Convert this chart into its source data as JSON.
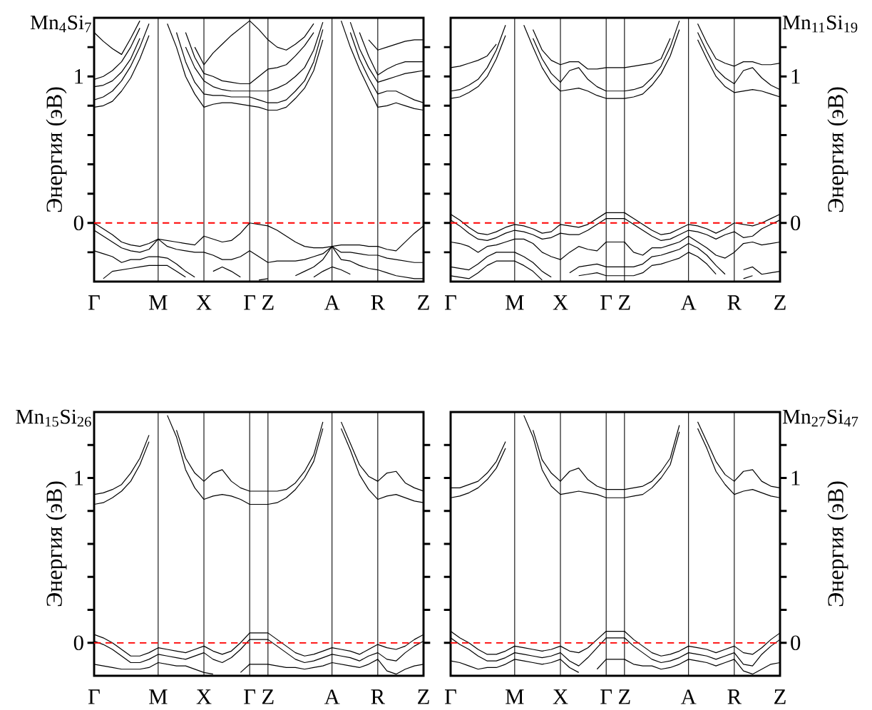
{
  "chart_data": [
    {
      "type": "line",
      "title": "Mn$_{4}$Si$_{7}$",
      "ylabel": "Энергия (эВ)",
      "ylim": [
        -0.4,
        1.4
      ],
      "grid": "x",
      "categories": [
        "Γ",
        null,
        null,
        null,
        null,
        null,
        null,
        "M",
        null,
        null,
        null,
        null,
        "X",
        null,
        null,
        null,
        null,
        "Γ",
        null,
        "Z",
        null,
        null,
        null,
        null,
        null,
        null,
        "A",
        null,
        null,
        null,
        null,
        "R",
        null,
        null,
        null,
        null,
        "Z"
      ],
      "yticks": [
        {
          "value": -0.2,
          "label": null
        },
        0,
        {
          "value": 0.2,
          "label": null
        },
        {
          "value": 0.4,
          "label": null
        },
        {
          "value": 0.6,
          "label": null
        },
        {
          "value": 0.8,
          "label": null
        },
        1,
        {
          "value": 1.2,
          "label": null
        }
      ],
      "ref_lines": [
        {
          "axis": "y",
          "value": 0,
          "color": "#ff0000",
          "line_style": "dashed"
        }
      ],
      "series": [
        {
          "color": "#000000",
          "values": [
            0.79,
            0.8,
            0.83,
            0.9,
            0.99,
            1.12,
            1.28,
            null,
            1.36,
            1.2,
            1.0,
            0.88,
            0.79,
            0.81,
            0.82,
            0.82,
            0.81,
            0.8,
            0.79,
            0.77,
            0.77,
            0.79,
            0.85,
            0.92,
            1.04,
            1.25,
            null,
            1.38,
            1.2,
            1.05,
            0.92,
            0.79,
            0.8,
            0.82,
            0.8,
            0.78,
            0.77
          ]
        },
        {
          "color": "#000000",
          "values": [
            0.84,
            0.86,
            0.9,
            0.97,
            1.07,
            1.2,
            1.36,
            null,
            null,
            1.3,
            1.1,
            0.96,
            0.88,
            0.87,
            0.87,
            0.86,
            0.86,
            0.86,
            0.84,
            0.82,
            0.82,
            0.84,
            0.9,
            0.97,
            1.1,
            1.32,
            null,
            null,
            1.3,
            1.12,
            0.99,
            0.88,
            0.9,
            0.9,
            0.87,
            0.84,
            0.82
          ]
        },
        {
          "color": "#000000",
          "values": [
            0.93,
            0.94,
            0.97,
            1.03,
            1.12,
            1.26,
            null,
            null,
            null,
            null,
            1.2,
            1.06,
            0.97,
            0.93,
            0.91,
            0.9,
            0.9,
            0.9,
            0.9,
            0.9,
            0.92,
            0.95,
            1.0,
            1.06,
            1.18,
            1.37,
            null,
            null,
            1.37,
            1.19,
            1.06,
            0.96,
            0.98,
            1.0,
            1.02,
            1.03,
            1.04
          ]
        },
        {
          "color": "#000000",
          "values": [
            0.98,
            1.0,
            1.04,
            1.1,
            1.2,
            1.33,
            null,
            null,
            null,
            null,
            1.3,
            1.13,
            1.02,
            1.0,
            0.97,
            0.96,
            0.95,
            0.95,
            1.0,
            1.05,
            1.06,
            1.08,
            1.14,
            1.21,
            1.3,
            null,
            null,
            null,
            null,
            1.3,
            1.14,
            1.01,
            1.05,
            1.08,
            1.1,
            1.1,
            1.1
          ]
        },
        {
          "color": "#000000",
          "values": [
            1.3,
            1.24,
            1.19,
            1.15,
            1.26,
            1.38,
            null,
            null,
            null,
            null,
            null,
            1.2,
            1.08,
            1.16,
            1.22,
            1.28,
            1.33,
            1.38,
            1.32,
            1.25,
            1.2,
            1.18,
            1.22,
            1.27,
            1.36,
            null,
            null,
            null,
            null,
            null,
            1.25,
            1.18,
            1.2,
            1.22,
            1.24,
            1.25,
            1.25
          ]
        },
        {
          "color": "#000000",
          "values": [
            0.0,
            -0.04,
            -0.08,
            -0.13,
            -0.15,
            -0.16,
            -0.14,
            -0.11,
            -0.12,
            -0.13,
            -0.14,
            -0.15,
            -0.09,
            -0.11,
            -0.13,
            -0.12,
            -0.07,
            0.0,
            -0.01,
            -0.02,
            -0.05,
            -0.09,
            -0.13,
            -0.16,
            -0.17,
            -0.17,
            -0.16,
            -0.15,
            -0.15,
            -0.15,
            -0.16,
            -0.16,
            -0.18,
            -0.19,
            -0.13,
            -0.07,
            -0.02
          ]
        },
        {
          "color": "#000000",
          "values": [
            -0.05,
            -0.09,
            -0.13,
            -0.17,
            -0.19,
            -0.2,
            -0.18,
            -0.11,
            -0.16,
            -0.18,
            -0.19,
            -0.2,
            -0.2,
            -0.22,
            -0.25,
            -0.25,
            -0.23,
            -0.19,
            -0.23,
            -0.27,
            -0.26,
            -0.26,
            -0.26,
            -0.25,
            -0.23,
            -0.21,
            -0.16,
            -0.2,
            -0.2,
            -0.21,
            -0.22,
            -0.22,
            -0.24,
            -0.25,
            -0.26,
            -0.27,
            -0.27
          ]
        },
        {
          "color": "#000000",
          "values": [
            -0.19,
            -0.21,
            -0.23,
            -0.27,
            -0.25,
            -0.25,
            -0.23,
            -0.23,
            -0.24,
            -0.28,
            -0.33,
            -0.37,
            null,
            -0.33,
            -0.3,
            -0.33,
            -0.37,
            null,
            -0.39,
            -0.38,
            null,
            null,
            -0.36,
            -0.33,
            -0.3,
            -0.25,
            -0.16,
            -0.25,
            -0.26,
            -0.29,
            -0.31,
            -0.32,
            -0.34,
            -0.36,
            -0.37,
            -0.38,
            -0.38
          ]
        },
        {
          "color": "#000000",
          "values": [
            null,
            -0.38,
            -0.33,
            -0.32,
            -0.31,
            -0.3,
            -0.29,
            -0.29,
            -0.29,
            -0.33,
            -0.37,
            null,
            null,
            null,
            null,
            null,
            null,
            null,
            null,
            null,
            null,
            null,
            null,
            null,
            -0.37,
            -0.33,
            -0.3,
            -0.32,
            -0.35,
            null,
            null,
            null,
            null,
            null,
            null,
            null,
            null
          ]
        }
      ]
    },
    {
      "type": "line",
      "title": "Mn$_{11}$Si$_{19}$",
      "y2label": "Энергия (эВ)",
      "y2lim": [
        -0.4,
        1.4
      ],
      "grid": "x",
      "categories": [
        "Γ",
        null,
        null,
        null,
        null,
        null,
        null,
        "M",
        null,
        null,
        null,
        null,
        "X",
        null,
        null,
        null,
        null,
        "Γ",
        null,
        "Z",
        null,
        null,
        null,
        null,
        null,
        null,
        "A",
        null,
        null,
        null,
        null,
        "R",
        null,
        null,
        null,
        null,
        "Z"
      ],
      "y2ticks": [
        {
          "value": -0.2,
          "label": null
        },
        0,
        {
          "value": 0.2,
          "label": null
        },
        {
          "value": 0.4,
          "label": null
        },
        {
          "value": 0.6,
          "label": null
        },
        {
          "value": 0.8,
          "label": null
        },
        1,
        {
          "value": 1.2,
          "label": null
        }
      ],
      "ref_lines": [
        {
          "axis": "y2",
          "value": 0,
          "color": "#ff0000",
          "line_style": "dashed"
        }
      ],
      "series": [
        {
          "axis": "y2",
          "color": "#000000",
          "values": [
            0.85,
            0.86,
            0.89,
            0.93,
            1.0,
            1.12,
            1.28,
            null,
            1.35,
            1.2,
            1.06,
            0.96,
            0.9,
            0.91,
            0.92,
            0.9,
            0.87,
            0.85,
            0.85,
            0.85,
            0.86,
            0.88,
            0.94,
            1.02,
            1.14,
            1.32,
            null,
            1.25,
            1.12,
            1.0,
            0.93,
            0.89,
            0.9,
            0.91,
            0.9,
            0.88,
            0.86
          ]
        },
        {
          "axis": "y2",
          "color": "#000000",
          "values": [
            0.9,
            0.91,
            0.94,
            0.98,
            1.06,
            1.18,
            1.35,
            null,
            null,
            1.26,
            1.12,
            1.02,
            0.96,
            1.04,
            1.06,
            0.98,
            0.93,
            0.9,
            0.9,
            0.9,
            0.91,
            0.93,
            0.99,
            1.07,
            1.2,
            1.38,
            null,
            1.3,
            1.17,
            1.05,
            0.99,
            0.95,
            1.04,
            1.06,
            0.99,
            0.94,
            0.91
          ]
        },
        {
          "axis": "y2",
          "color": "#000000",
          "values": [
            1.06,
            1.07,
            1.09,
            1.11,
            1.14,
            1.22,
            null,
            null,
            null,
            1.32,
            1.18,
            1.11,
            1.08,
            1.1,
            1.1,
            1.05,
            1.05,
            1.06,
            1.06,
            1.06,
            1.07,
            1.08,
            1.09,
            1.12,
            1.26,
            null,
            null,
            1.36,
            1.23,
            1.12,
            1.09,
            1.07,
            1.1,
            1.1,
            1.08,
            1.08,
            1.09
          ]
        },
        {
          "axis": "y2",
          "color": "#000000",
          "values": [
            0.06,
            0.02,
            -0.03,
            -0.07,
            -0.08,
            -0.06,
            -0.03,
            -0.01,
            -0.02,
            -0.04,
            -0.07,
            -0.06,
            -0.01,
            -0.02,
            -0.03,
            -0.01,
            0.03,
            0.07,
            0.07,
            0.07,
            0.03,
            -0.01,
            -0.05,
            -0.08,
            -0.07,
            -0.04,
            -0.01,
            -0.02,
            -0.04,
            -0.07,
            -0.04,
            0.0,
            -0.01,
            -0.02,
            0.0,
            0.03,
            0.06
          ]
        },
        {
          "axis": "y2",
          "color": "#000000",
          "values": [
            0.02,
            -0.02,
            -0.07,
            -0.11,
            -0.12,
            -0.1,
            -0.07,
            -0.05,
            -0.06,
            -0.08,
            -0.11,
            -0.1,
            -0.07,
            -0.08,
            -0.08,
            -0.05,
            -0.01,
            0.03,
            0.03,
            0.03,
            -0.01,
            -0.05,
            -0.09,
            -0.12,
            -0.11,
            -0.08,
            -0.05,
            -0.06,
            -0.08,
            -0.11,
            -0.08,
            -0.06,
            -0.1,
            -0.09,
            -0.04,
            -0.01,
            0.02
          ]
        },
        {
          "axis": "y2",
          "color": "#000000",
          "values": [
            -0.13,
            -0.14,
            -0.16,
            -0.2,
            -0.16,
            -0.15,
            -0.13,
            -0.11,
            -0.11,
            -0.14,
            -0.2,
            -0.23,
            -0.25,
            -0.2,
            -0.16,
            -0.18,
            -0.19,
            -0.13,
            -0.13,
            -0.13,
            -0.2,
            -0.22,
            -0.17,
            -0.17,
            -0.15,
            -0.13,
            -0.09,
            -0.13,
            -0.17,
            -0.22,
            -0.24,
            -0.2,
            -0.14,
            -0.13,
            -0.15,
            -0.14,
            -0.13
          ]
        },
        {
          "axis": "y2",
          "color": "#000000",
          "values": [
            -0.3,
            -0.31,
            -0.32,
            -0.28,
            -0.23,
            -0.2,
            -0.2,
            -0.2,
            -0.23,
            -0.27,
            -0.33,
            -0.37,
            null,
            -0.34,
            -0.3,
            -0.29,
            -0.28,
            -0.3,
            -0.3,
            -0.3,
            -0.3,
            -0.28,
            -0.23,
            -0.22,
            -0.2,
            -0.18,
            -0.14,
            -0.17,
            -0.22,
            -0.29,
            -0.35,
            null,
            -0.32,
            -0.3,
            -0.35,
            -0.34,
            -0.33
          ]
        },
        {
          "axis": "y2",
          "color": "#000000",
          "values": [
            -0.36,
            -0.37,
            -0.38,
            -0.34,
            -0.29,
            -0.26,
            -0.26,
            -0.26,
            -0.29,
            -0.33,
            -0.39,
            null,
            null,
            null,
            -0.36,
            -0.35,
            -0.34,
            -0.36,
            -0.36,
            -0.36,
            -0.36,
            -0.34,
            -0.29,
            -0.28,
            -0.26,
            -0.24,
            -0.2,
            -0.23,
            -0.28,
            -0.35,
            null,
            null,
            -0.38,
            -0.36,
            null,
            null,
            null
          ]
        }
      ]
    },
    {
      "type": "line",
      "title": "Mn$_{15}$Si$_{26}$",
      "ylabel": "Энергия (эВ)",
      "ylim": [
        -0.2,
        1.4
      ],
      "grid": "x",
      "categories": [
        "Γ",
        null,
        null,
        null,
        null,
        null,
        null,
        "M",
        null,
        null,
        null,
        null,
        "X",
        null,
        null,
        null,
        null,
        "Γ",
        null,
        "Z",
        null,
        null,
        null,
        null,
        null,
        null,
        "A",
        null,
        null,
        null,
        null,
        "R",
        null,
        null,
        null,
        null,
        "Z"
      ],
      "yticks": [
        0,
        {
          "value": 0.2,
          "label": null
        },
        {
          "value": 0.4,
          "label": null
        },
        {
          "value": 0.6,
          "label": null
        },
        {
          "value": 0.8,
          "label": null
        },
        1,
        {
          "value": 1.2,
          "label": null
        }
      ],
      "ref_lines": [
        {
          "axis": "y",
          "value": 0,
          "color": "#ff0000",
          "line_style": "dashed"
        }
      ],
      "series": [
        {
          "color": "#000000",
          "values": [
            0.84,
            0.85,
            0.88,
            0.92,
            0.98,
            1.08,
            1.22,
            null,
            1.38,
            1.25,
            1.05,
            0.94,
            0.87,
            0.89,
            0.9,
            0.89,
            0.87,
            0.84,
            0.84,
            0.84,
            0.85,
            0.88,
            0.93,
            1.0,
            1.1,
            1.3,
            null,
            1.3,
            1.17,
            1.02,
            0.93,
            0.87,
            0.89,
            0.9,
            0.88,
            0.86,
            0.85
          ]
        },
        {
          "color": "#000000",
          "values": [
            0.9,
            0.91,
            0.93,
            0.96,
            1.03,
            1.12,
            1.26,
            null,
            null,
            1.29,
            1.12,
            1.03,
            0.98,
            1.03,
            1.05,
            0.98,
            0.94,
            0.92,
            0.92,
            0.92,
            0.92,
            0.93,
            0.97,
            1.04,
            1.14,
            1.34,
            null,
            1.34,
            1.21,
            1.08,
            1.01,
            0.98,
            1.03,
            1.04,
            0.97,
            0.94,
            0.92
          ]
        },
        {
          "color": "#000000",
          "values": [
            0.05,
            0.03,
            0.0,
            -0.04,
            -0.08,
            -0.08,
            -0.06,
            -0.03,
            -0.04,
            -0.05,
            -0.06,
            -0.04,
            -0.02,
            -0.05,
            -0.07,
            -0.05,
            0.0,
            0.06,
            0.06,
            0.06,
            0.02,
            -0.02,
            -0.06,
            -0.08,
            -0.07,
            -0.05,
            -0.03,
            -0.04,
            -0.05,
            -0.07,
            -0.04,
            -0.01,
            -0.03,
            -0.04,
            -0.02,
            0.02,
            0.05
          ]
        },
        {
          "color": "#000000",
          "values": [
            0.01,
            -0.01,
            -0.04,
            -0.08,
            -0.12,
            -0.12,
            -0.1,
            -0.07,
            -0.08,
            -0.09,
            -0.1,
            -0.08,
            -0.06,
            -0.1,
            -0.12,
            -0.09,
            -0.04,
            0.02,
            0.02,
            0.02,
            -0.02,
            -0.06,
            -0.1,
            -0.12,
            -0.11,
            -0.09,
            -0.07,
            -0.08,
            -0.09,
            -0.11,
            -0.08,
            -0.06,
            -0.1,
            -0.11,
            -0.06,
            -0.02,
            0.01
          ]
        },
        {
          "color": "#000000",
          "values": [
            -0.13,
            -0.14,
            -0.15,
            -0.16,
            -0.16,
            -0.16,
            -0.15,
            -0.12,
            -0.13,
            -0.14,
            -0.14,
            -0.16,
            -0.18,
            -0.19,
            null,
            null,
            -0.18,
            -0.13,
            -0.13,
            -0.13,
            -0.14,
            -0.15,
            -0.15,
            -0.16,
            -0.15,
            -0.14,
            -0.12,
            -0.13,
            -0.14,
            -0.15,
            -0.13,
            -0.1,
            -0.17,
            -0.19,
            -0.16,
            -0.14,
            -0.13
          ]
        }
      ]
    },
    {
      "type": "line",
      "title": "Mn$_{27}$Si$_{47}$",
      "y2label": "Энергия (эВ)",
      "y2lim": [
        -0.2,
        1.4
      ],
      "grid": "x",
      "categories": [
        "Γ",
        null,
        null,
        null,
        null,
        null,
        null,
        "M",
        null,
        null,
        null,
        null,
        "X",
        null,
        null,
        null,
        null,
        "Γ",
        null,
        "Z",
        null,
        null,
        null,
        null,
        null,
        null,
        "A",
        null,
        null,
        null,
        null,
        "R",
        null,
        null,
        null,
        null,
        "Z"
      ],
      "y2ticks": [
        0,
        {
          "value": 0.2,
          "label": null
        },
        {
          "value": 0.4,
          "label": null
        },
        {
          "value": 0.6,
          "label": null
        },
        {
          "value": 0.8,
          "label": null
        },
        1,
        {
          "value": 1.2,
          "label": null
        }
      ],
      "ref_lines": [
        {
          "axis": "y2",
          "value": 0,
          "color": "#ff0000",
          "line_style": "dashed"
        }
      ],
      "series": [
        {
          "axis": "y2",
          "color": "#000000",
          "values": [
            0.88,
            0.89,
            0.91,
            0.94,
            0.99,
            1.06,
            1.18,
            null,
            1.38,
            1.25,
            1.05,
            0.95,
            0.9,
            0.91,
            0.92,
            0.91,
            0.9,
            0.88,
            0.88,
            0.88,
            0.89,
            0.9,
            0.94,
            1.0,
            1.08,
            1.28,
            null,
            1.3,
            1.18,
            1.04,
            0.96,
            0.9,
            0.92,
            0.93,
            0.91,
            0.89,
            0.88
          ]
        },
        {
          "axis": "y2",
          "color": "#000000",
          "values": [
            0.94,
            0.94,
            0.96,
            0.98,
            1.03,
            1.1,
            1.22,
            null,
            null,
            1.29,
            1.11,
            1.03,
            0.98,
            1.04,
            1.06,
            0.99,
            0.95,
            0.93,
            0.93,
            0.93,
            0.94,
            0.95,
            0.98,
            1.04,
            1.12,
            1.32,
            null,
            1.34,
            1.22,
            1.1,
            1.02,
            0.98,
            1.04,
            1.05,
            0.98,
            0.95,
            0.94
          ]
        },
        {
          "axis": "y2",
          "color": "#000000",
          "values": [
            0.07,
            0.03,
            0.0,
            -0.04,
            -0.07,
            -0.07,
            -0.05,
            -0.02,
            -0.03,
            -0.04,
            -0.05,
            -0.04,
            -0.02,
            -0.05,
            -0.06,
            -0.03,
            0.02,
            0.07,
            0.07,
            0.07,
            0.02,
            -0.02,
            -0.06,
            -0.08,
            -0.07,
            -0.05,
            -0.02,
            -0.03,
            -0.04,
            -0.06,
            -0.04,
            -0.02,
            -0.06,
            -0.07,
            -0.03,
            0.02,
            0.06
          ]
        },
        {
          "axis": "y2",
          "color": "#000000",
          "values": [
            0.03,
            -0.01,
            -0.04,
            -0.08,
            -0.11,
            -0.11,
            -0.09,
            -0.06,
            -0.07,
            -0.08,
            -0.09,
            -0.08,
            -0.06,
            -0.11,
            -0.14,
            -0.09,
            -0.03,
            0.03,
            0.03,
            0.03,
            -0.02,
            -0.06,
            -0.1,
            -0.12,
            -0.11,
            -0.09,
            -0.06,
            -0.07,
            -0.08,
            -0.1,
            -0.08,
            -0.06,
            -0.13,
            -0.14,
            -0.07,
            -0.02,
            0.02
          ]
        },
        {
          "axis": "y2",
          "color": "#000000",
          "values": [
            -0.11,
            -0.12,
            -0.14,
            -0.16,
            -0.15,
            -0.15,
            -0.13,
            -0.1,
            -0.11,
            -0.12,
            -0.13,
            -0.12,
            -0.1,
            -0.15,
            -0.18,
            null,
            -0.16,
            -0.1,
            -0.1,
            -0.1,
            -0.13,
            -0.14,
            -0.14,
            -0.16,
            -0.15,
            -0.13,
            -0.1,
            -0.11,
            -0.12,
            -0.14,
            -0.12,
            -0.1,
            -0.17,
            -0.19,
            -0.16,
            -0.13,
            -0.12
          ]
        }
      ]
    }
  ]
}
